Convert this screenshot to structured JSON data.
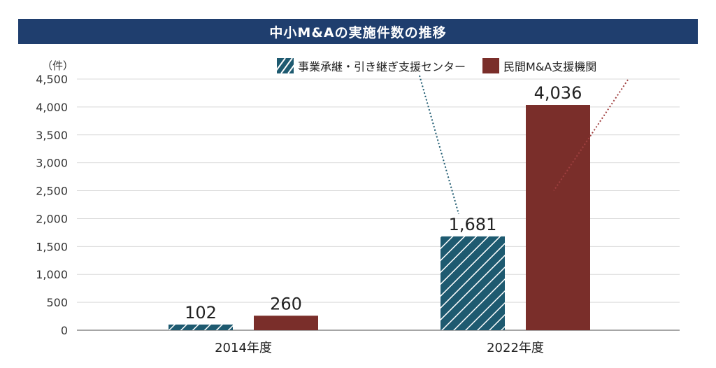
{
  "chart_data": {
    "type": "bar",
    "title": "中小M&Aの実施件数の推移",
    "unit_label": "（件）",
    "categories": [
      "2014年度",
      "2022年度"
    ],
    "series": [
      {
        "name": "事業承継・引き継ぎ支援センター",
        "values": [
          102,
          1681
        ],
        "color": "#1e5a70",
        "pattern": "hatched"
      },
      {
        "name": "民間M&A支援機関",
        "values": [
          260,
          4036
        ],
        "color": "#7a2e2a",
        "pattern": "solid"
      }
    ],
    "ylim": [
      0,
      4500
    ],
    "yticks": [
      0,
      500,
      1000,
      1500,
      2000,
      2500,
      3000,
      3500,
      4000,
      4500
    ],
    "ytick_labels": [
      "0",
      "500",
      "1,000",
      "1,500",
      "2,000",
      "2,500",
      "3,000",
      "3,500",
      "4,000",
      "4,500"
    ],
    "data_labels": [
      [
        "102",
        "1,681"
      ],
      [
        "260",
        "4,036"
      ]
    ],
    "grid": true,
    "legend_position": "top-right"
  }
}
